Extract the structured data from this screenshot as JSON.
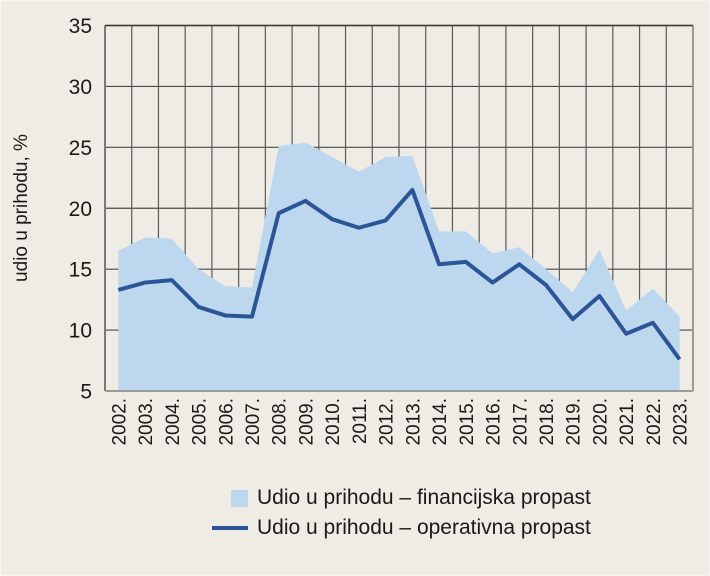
{
  "chart_data": {
    "type": "area",
    "title": "",
    "xlabel": "",
    "ylabel": "udio u prihodu, %",
    "ylim": [
      5,
      35
    ],
    "yticks": [
      5,
      10,
      15,
      20,
      25,
      30,
      35
    ],
    "grid": true,
    "legend_position": "bottom",
    "categories": [
      "2002.",
      "2003.",
      "2004.",
      "2005.",
      "2006.",
      "2007.",
      "2008.",
      "2009.",
      "2010.",
      "2011.",
      "2012.",
      "2013.",
      "2014.",
      "2015.",
      "2016.",
      "2017.",
      "2018.",
      "2019.",
      "2020.",
      "2021.",
      "2022.",
      "2023."
    ],
    "series": [
      {
        "name": "Udio u prihodu – financijska propast",
        "kind": "area",
        "color": "#bdd7ee",
        "values": [
          16.5,
          17.6,
          17.5,
          15.0,
          13.6,
          13.5,
          25.1,
          25.4,
          24.2,
          23.0,
          24.2,
          24.3,
          18.1,
          18.1,
          16.3,
          16.8,
          15.0,
          13.1,
          16.6,
          11.6,
          13.4,
          11.1
        ]
      },
      {
        "name": "Udio u prihodu – operativna propast",
        "kind": "line",
        "color": "#2b5597",
        "values": [
          13.3,
          13.9,
          14.1,
          11.9,
          11.2,
          11.1,
          19.6,
          20.6,
          19.1,
          18.4,
          19.0,
          21.5,
          15.4,
          15.6,
          13.9,
          15.4,
          13.7,
          10.9,
          12.8,
          9.7,
          10.6,
          7.6
        ]
      }
    ]
  },
  "legend": {
    "items": [
      {
        "label": "Udio u prihodu – financijska propast"
      },
      {
        "label": "Udio u prihodu – operativna propast"
      }
    ]
  }
}
